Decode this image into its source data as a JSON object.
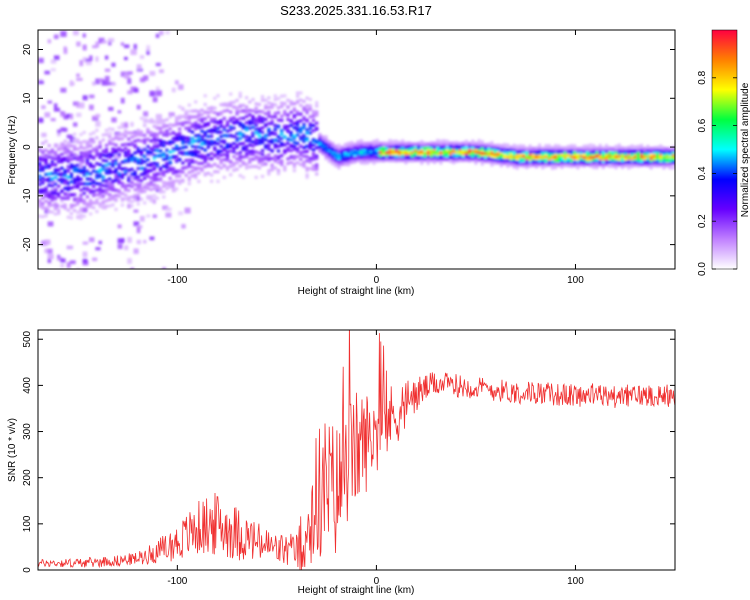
{
  "title": "S233.2025.331.16.53.R17",
  "chart_data": [
    {
      "type": "heatmap",
      "name": "spectrogram",
      "xlabel": "Height of straight line (km)",
      "ylabel": "Frequency (Hz)",
      "xlim": [
        -170,
        150
      ],
      "ylim": [
        -25,
        24
      ],
      "xticks": [
        -100,
        0,
        100
      ],
      "xtick_labels": [
        "-100",
        "0",
        "100"
      ],
      "yticks": [
        -20,
        -10,
        0,
        10,
        20
      ],
      "ytick_labels": [
        "-20",
        "-10",
        "0",
        "10",
        "20"
      ],
      "grid": false,
      "ridge": {
        "x": [
          -150,
          -130,
          -110,
          -90,
          -70,
          -50,
          -40,
          -30,
          -20,
          -10,
          0,
          10,
          30,
          50,
          70,
          90,
          110,
          130,
          150
        ],
        "freq": [
          -6,
          -4,
          -2,
          1,
          2.5,
          2,
          3,
          1,
          -2,
          -1,
          -1,
          -1,
          -1,
          -1,
          -2,
          -2,
          -2,
          -2,
          -2
        ]
      },
      "colorbar": {
        "label": "Normalized spectral amplitude",
        "range": [
          0,
          1
        ],
        "ticks": [
          0.0,
          0.2,
          0.4,
          0.6,
          0.8
        ],
        "tick_labels": [
          "0.0",
          "0.2",
          "0.4",
          "0.6",
          "0.8"
        ],
        "colors": [
          "#ffffff",
          "#c080ff",
          "#6600ff",
          "#0000ff",
          "#00ffff",
          "#00ff40",
          "#ffff00",
          "#ff8000",
          "#ff0040"
        ]
      }
    },
    {
      "type": "line",
      "name": "snr",
      "xlabel": "Height of straight line (km)",
      "ylabel": "SNR (10 * v/v)",
      "xlim": [
        -170,
        150
      ],
      "ylim": [
        0,
        520
      ],
      "xticks": [
        -100,
        0,
        100
      ],
      "xtick_labels": [
        "-100",
        "0",
        "100"
      ],
      "yticks": [
        0,
        100,
        200,
        300,
        400,
        500
      ],
      "ytick_labels": [
        "0",
        "100",
        "200",
        "300",
        "400",
        "500"
      ],
      "grid": false,
      "series": [
        {
          "name": "SNR",
          "color": "#f03030",
          "x": [
            -170,
            -150,
            -130,
            -120,
            -110,
            -100,
            -90,
            -80,
            -70,
            -60,
            -50,
            -40,
            -35,
            -30,
            -25,
            -20,
            -15,
            -10,
            -5,
            0,
            5,
            10,
            15,
            20,
            25,
            30,
            40,
            50,
            60,
            70,
            80,
            90,
            100,
            110,
            120,
            130,
            140,
            150
          ],
          "values": [
            15,
            15,
            20,
            25,
            40,
            60,
            90,
            100,
            80,
            60,
            45,
            40,
            80,
            160,
            180,
            170,
            230,
            260,
            280,
            300,
            320,
            340,
            360,
            380,
            395,
            405,
            400,
            395,
            390,
            385,
            385,
            380,
            378,
            380,
            375,
            378,
            380,
            378
          ],
          "spread": [
            8,
            10,
            12,
            14,
            25,
            40,
            60,
            70,
            60,
            45,
            35,
            40,
            100,
            150,
            160,
            150,
            140,
            130,
            110,
            90,
            80,
            70,
            55,
            40,
            30,
            25,
            25,
            25,
            25,
            25,
            25,
            25,
            25,
            25,
            25,
            25,
            25,
            25
          ]
        }
      ]
    }
  ]
}
